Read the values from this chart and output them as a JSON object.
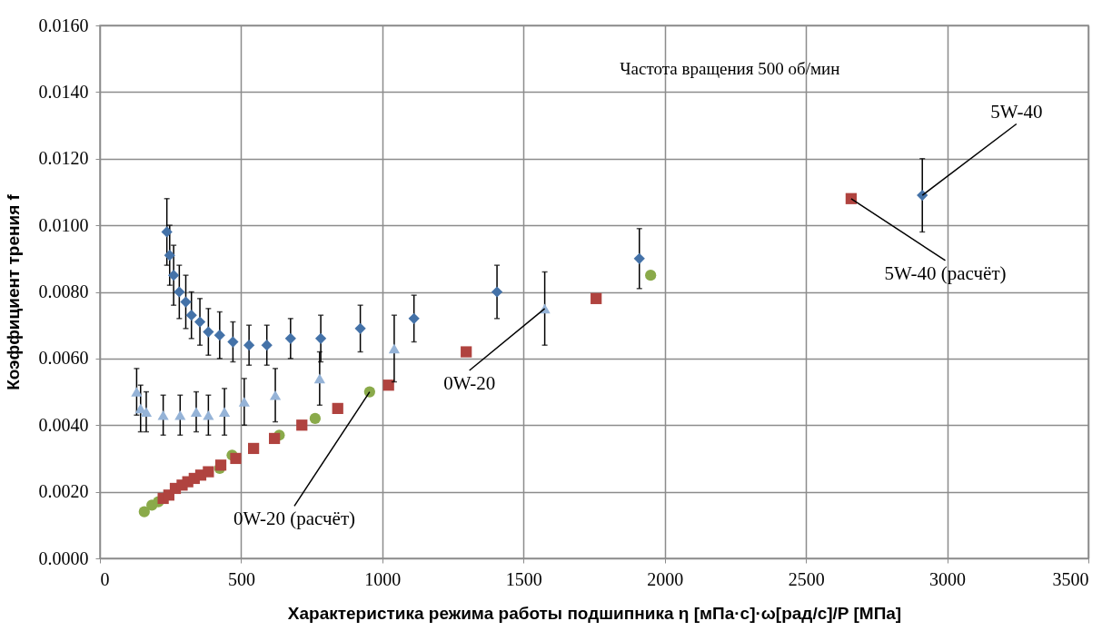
{
  "chart_data": {
    "type": "scatter",
    "xlabel": "Характеристика режима работы подшипника η [мПа·с]·ω[рад/с]/P  [МПа]",
    "ylabel": "Коэффициент трения f",
    "xlim": [
      0,
      3500
    ],
    "xticks": [
      0,
      500,
      1000,
      1500,
      2000,
      2500,
      3000,
      3500
    ],
    "ylim": [
      0,
      0.016
    ],
    "yticks": [
      {
        "value": 0,
        "label": "0.0000"
      },
      {
        "value": 0.002,
        "label": "0.0020"
      },
      {
        "value": 0.004,
        "label": "0.0040"
      },
      {
        "value": 0.006,
        "label": "0.0060"
      },
      {
        "value": 0.008,
        "label": "0.0080"
      },
      {
        "value": 0.01,
        "label": "0.0100"
      },
      {
        "value": 0.012,
        "label": "0.0120"
      },
      {
        "value": 0.014,
        "label": "0.0140"
      },
      {
        "value": 0.016,
        "label": "0.0160"
      }
    ],
    "grid": true,
    "series": [
      {
        "color": "#8aaa4a",
        "marker": "circle",
        "x": [
          157,
          184,
          207,
          424,
          468,
          635,
          762,
          955,
          1950
        ],
        "values": [
          0.0014,
          0.0016,
          0.0017,
          0.0027,
          0.0031,
          0.0037,
          0.0042,
          0.005,
          0.0085
        ]
      },
      {
        "color": "#b0433f",
        "marker": "square",
        "x": [
          224,
          244,
          267,
          291,
          311,
          334,
          357,
          384,
          428,
          481,
          544,
          618,
          715,
          842,
          1022,
          1297,
          1757,
          2660
        ],
        "values": [
          0.0018,
          0.0019,
          0.0021,
          0.0022,
          0.0023,
          0.0024,
          0.0025,
          0.0026,
          0.0028,
          0.003,
          0.0033,
          0.0036,
          0.004,
          0.0045,
          0.0052,
          0.0062,
          0.0078,
          0.0108
        ]
      },
      {
        "color": "#95b3d7",
        "marker": "triangle",
        "x": [
          130,
          144,
          164,
          224,
          284,
          341,
          384,
          441,
          511,
          621,
          778,
          1042,
          1575
        ],
        "values": [
          0.005,
          0.0045,
          0.0044,
          0.0043,
          0.0043,
          0.0044,
          0.0043,
          0.0044,
          0.0047,
          0.0049,
          0.0054,
          0.0063,
          0.0075
        ],
        "errors": [
          0.0007,
          0.0007,
          0.0006,
          0.0006,
          0.0006,
          0.0006,
          0.0006,
          0.0007,
          0.0007,
          0.0008,
          0.0008,
          0.001,
          0.0011
        ]
      },
      {
        "color": "#4472a8",
        "marker": "diamond",
        "x": [
          237,
          247,
          261,
          281,
          304,
          324,
          354,
          384,
          424,
          471,
          528,
          591,
          675,
          782,
          922,
          1112,
          1406,
          1910,
          2912
        ],
        "values": [
          0.0098,
          0.0091,
          0.0085,
          0.008,
          0.0077,
          0.0073,
          0.0071,
          0.0068,
          0.0067,
          0.0065,
          0.0064,
          0.0064,
          0.0066,
          0.0066,
          0.0069,
          0.0072,
          0.008,
          0.009,
          0.0109
        ],
        "errors": [
          0.001,
          0.0009,
          0.0009,
          0.0008,
          0.0008,
          0.0007,
          0.0007,
          0.0007,
          0.0007,
          0.0006,
          0.0006,
          0.0006,
          0.0006,
          0.0007,
          0.0007,
          0.0007,
          0.0008,
          0.0009,
          0.0011
        ]
      }
    ],
    "annotations": [
      "Частота вращения 500 об/мин",
      {
        "text": "5W-40",
        "x": 2912,
        "y": 0.0109
      },
      {
        "text": "5W-40 (расчёт)",
        "x": 2660,
        "y": 0.0108
      },
      {
        "text": "0W-20",
        "x": 1575,
        "y": 0.0075
      },
      {
        "text": "0W-20 (расчёт)",
        "x": 955,
        "y": 0.005
      }
    ]
  }
}
